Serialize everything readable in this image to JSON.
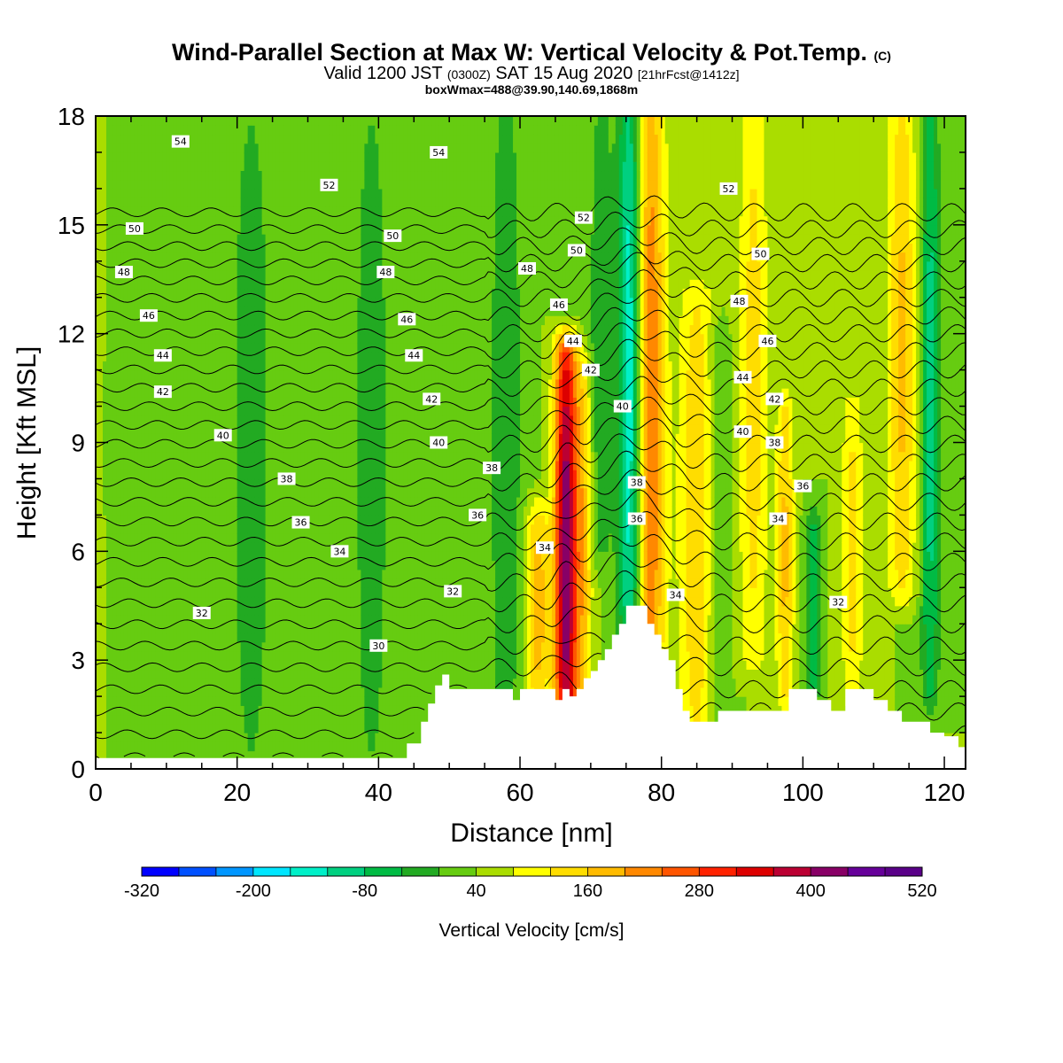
{
  "title": {
    "main": "Wind-Parallel Section at Max W: Vertical Velocity & Pot.Temp.",
    "main_suffix": "(C)",
    "valid_prefix": "Valid 1200 JST",
    "valid_utc": "(0300Z)",
    "valid_date": "SAT 15 Aug 2020",
    "forecast": "[21hrFcst@1412z]",
    "subtitle": "boxWmax=488@39.90,140.69,1868m"
  },
  "chart_data": {
    "type": "heatmap",
    "xlabel": "Distance [nm]",
    "ylabel": "Height [Kft MSL]",
    "xlim": [
      0,
      123
    ],
    "ylim": [
      0,
      18
    ],
    "x_ticks": [
      0,
      20,
      40,
      60,
      80,
      100,
      120
    ],
    "y_ticks": [
      0,
      3,
      6,
      9,
      12,
      15,
      18
    ],
    "colorbar": {
      "label": "Vertical Velocity [cm/s]",
      "min": -320,
      "max": 520,
      "step": 40,
      "tick_labels": [
        "-320",
        "-200",
        "-80",
        "40",
        "160",
        "280",
        "400",
        "520"
      ],
      "colors": [
        "#0000ff",
        "#0050ff",
        "#0096ff",
        "#00e6ff",
        "#00f0c8",
        "#00d080",
        "#00bb44",
        "#22aa22",
        "#66cc11",
        "#aadd00",
        "#ffff00",
        "#ffdd00",
        "#ffbb00",
        "#ff8800",
        "#ff5500",
        "#ff2200",
        "#dd0000",
        "#bb0033",
        "#880066",
        "#660099",
        "#5a0088"
      ]
    },
    "background_level": 40,
    "terrain": {
      "x": [
        0,
        42,
        44,
        46,
        47,
        48,
        49,
        50,
        52,
        54,
        56,
        58,
        59,
        60,
        62,
        64,
        65,
        66,
        67,
        68,
        69,
        70,
        71,
        72,
        73,
        74,
        75,
        76,
        77,
        78,
        79,
        80,
        81,
        82,
        83,
        84,
        85,
        86,
        88,
        90,
        92,
        94,
        96,
        98,
        100,
        102,
        104,
        106,
        108,
        110,
        112,
        114,
        116,
        118,
        120,
        122,
        123
      ],
      "height": [
        0.3,
        0.3,
        0.7,
        1.3,
        1.8,
        2.3,
        2.6,
        2.2,
        2.2,
        2.2,
        2.2,
        2.2,
        1.9,
        2.2,
        2.2,
        2.2,
        1.9,
        2.2,
        2.0,
        2.2,
        2.5,
        2.7,
        3.0,
        3.3,
        3.7,
        4.0,
        4.5,
        4.5,
        4.5,
        4.0,
        3.7,
        3.3,
        3.0,
        2.2,
        1.6,
        1.3,
        1.3,
        1.3,
        1.6,
        1.6,
        1.6,
        1.6,
        1.6,
        2.2,
        2.2,
        1.9,
        1.6,
        2.2,
        2.2,
        1.9,
        1.6,
        1.3,
        1.3,
        1.0,
        0.9,
        0.6,
        0.6
      ]
    },
    "w_features": [
      {
        "x": 66.5,
        "y0": 0,
        "y1": 11.5,
        "width": 1.6,
        "amplitude": 400
      },
      {
        "x": 62.5,
        "y0": 2,
        "y1": 7,
        "width": 1.6,
        "amplitude": 150
      },
      {
        "x": 69.0,
        "y0": 2,
        "y1": 11,
        "width": 1.2,
        "amplitude": 120
      },
      {
        "x": 78.5,
        "y0": 1,
        "y1": 18,
        "width": 2.0,
        "amplitude": 200
      },
      {
        "x": 75.5,
        "y0": 3,
        "y1": 18,
        "width": 1.6,
        "amplitude": -200
      },
      {
        "x": 85.0,
        "y0": 1,
        "y1": 13,
        "width": 2.5,
        "amplitude": 120
      },
      {
        "x": 93.0,
        "y0": 3,
        "y1": 18,
        "width": 2.0,
        "amplitude": 100
      },
      {
        "x": 97.5,
        "y0": 2,
        "y1": 10,
        "width": 1.2,
        "amplitude": 130
      },
      {
        "x": 101.5,
        "y0": 2,
        "y1": 7,
        "width": 1.0,
        "amplitude": -120
      },
      {
        "x": 107.0,
        "y0": 2,
        "y1": 10,
        "width": 1.5,
        "amplitude": 100
      },
      {
        "x": 114.0,
        "y0": 5,
        "y1": 18,
        "width": 2.0,
        "amplitude": 130
      },
      {
        "x": 88.0,
        "y0": 1,
        "y1": 12,
        "width": 1.5,
        "amplitude": -60
      },
      {
        "x": 22.0,
        "y0": 0.3,
        "y1": 18,
        "width": 3.5,
        "amplitude": -60
      },
      {
        "x": 39.0,
        "y0": 0.3,
        "y1": 18,
        "width": 3.0,
        "amplitude": -60
      },
      {
        "x": 58.0,
        "y0": 1,
        "y1": 18,
        "width": 2.5,
        "amplitude": -70
      },
      {
        "x": 71.5,
        "y0": 6,
        "y1": 18,
        "width": 1.8,
        "amplitude": -70
      },
      {
        "x": 118.0,
        "y0": 2,
        "y1": 18,
        "width": 1.3,
        "amplitude": -140
      }
    ],
    "theta_contours": {
      "step": 1,
      "min": 28,
      "max": 56,
      "labels": [
        {
          "text": "54",
          "x": 12,
          "y": 17.3
        },
        {
          "text": "54",
          "x": 48.5,
          "y": 17.0
        },
        {
          "text": "52",
          "x": 33,
          "y": 16.1
        },
        {
          "text": "52",
          "x": 69,
          "y": 15.2
        },
        {
          "text": "52",
          "x": 89.5,
          "y": 16.0
        },
        {
          "text": "50",
          "x": 5.5,
          "y": 14.9
        },
        {
          "text": "50",
          "x": 42,
          "y": 14.7
        },
        {
          "text": "50",
          "x": 68,
          "y": 14.3
        },
        {
          "text": "50",
          "x": 94,
          "y": 14.2
        },
        {
          "text": "48",
          "x": 4,
          "y": 13.7
        },
        {
          "text": "48",
          "x": 41,
          "y": 13.7
        },
        {
          "text": "48",
          "x": 61,
          "y": 13.8
        },
        {
          "text": "48",
          "x": 91,
          "y": 12.9
        },
        {
          "text": "46",
          "x": 7.5,
          "y": 12.5
        },
        {
          "text": "46",
          "x": 44,
          "y": 12.4
        },
        {
          "text": "46",
          "x": 65.5,
          "y": 12.8
        },
        {
          "text": "46",
          "x": 95,
          "y": 11.8
        },
        {
          "text": "44",
          "x": 9.5,
          "y": 11.4
        },
        {
          "text": "44",
          "x": 45,
          "y": 11.4
        },
        {
          "text": "44",
          "x": 67.5,
          "y": 11.8
        },
        {
          "text": "44",
          "x": 91.5,
          "y": 10.8
        },
        {
          "text": "42",
          "x": 9.5,
          "y": 10.4
        },
        {
          "text": "42",
          "x": 47.5,
          "y": 10.2
        },
        {
          "text": "42",
          "x": 70,
          "y": 11.0
        },
        {
          "text": "42",
          "x": 96,
          "y": 10.2
        },
        {
          "text": "40",
          "x": 18,
          "y": 9.2
        },
        {
          "text": "40",
          "x": 48.5,
          "y": 9.0
        },
        {
          "text": "40",
          "x": 74.5,
          "y": 10.0
        },
        {
          "text": "40",
          "x": 91.5,
          "y": 9.3
        },
        {
          "text": "38",
          "x": 27,
          "y": 8.0
        },
        {
          "text": "38",
          "x": 56,
          "y": 8.3
        },
        {
          "text": "38",
          "x": 76.5,
          "y": 7.9
        },
        {
          "text": "38",
          "x": 96,
          "y": 9.0
        },
        {
          "text": "36",
          "x": 29,
          "y": 6.8
        },
        {
          "text": "36",
          "x": 54,
          "y": 7.0
        },
        {
          "text": "36",
          "x": 76.5,
          "y": 6.9
        },
        {
          "text": "36",
          "x": 100,
          "y": 7.8
        },
        {
          "text": "34",
          "x": 34.5,
          "y": 6.0
        },
        {
          "text": "34",
          "x": 63.5,
          "y": 6.1
        },
        {
          "text": "34",
          "x": 82,
          "y": 4.8
        },
        {
          "text": "34",
          "x": 96.5,
          "y": 6.9
        },
        {
          "text": "32",
          "x": 15,
          "y": 4.3
        },
        {
          "text": "32",
          "x": 50.5,
          "y": 4.9
        },
        {
          "text": "32",
          "x": 105,
          "y": 4.6
        },
        {
          "text": "30",
          "x": 40,
          "y": 3.4
        }
      ]
    }
  }
}
